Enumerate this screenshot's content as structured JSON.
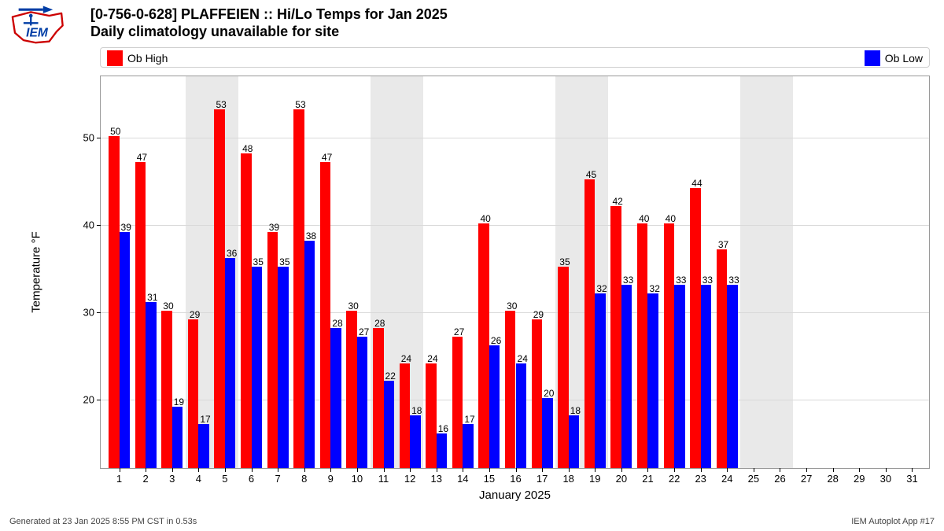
{
  "title": "[0-756-0-628] PLAFFEIEN :: Hi/Lo Temps for Jan 2025",
  "subtitle": "Daily climatology unavailable for site",
  "legend": {
    "high": {
      "label": "Ob High",
      "color": "#ff0000"
    },
    "low": {
      "label": "Ob Low",
      "color": "#0000ff"
    }
  },
  "chart": {
    "type": "bar",
    "background_color": "#ffffff",
    "weekend_band_color": "#e9e9e9",
    "grid_color": "#d9d9d9",
    "border_color": "#999999",
    "high_color": "#ff0000",
    "low_color": "#0000ff",
    "xlabel": "January 2025",
    "ylabel": "Temperature °F",
    "ylim": [
      12,
      57
    ],
    "yticks": [
      20,
      30,
      40,
      50
    ],
    "xlim": [
      0.3,
      31.7
    ],
    "days": [
      1,
      2,
      3,
      4,
      5,
      6,
      7,
      8,
      9,
      10,
      11,
      12,
      13,
      14,
      15,
      16,
      17,
      18,
      19,
      20,
      21,
      22,
      23,
      24,
      25,
      26,
      27,
      28,
      29,
      30,
      31
    ],
    "weekend_bands": [
      [
        3.5,
        5.5
      ],
      [
        10.5,
        12.5
      ],
      [
        17.5,
        19.5
      ],
      [
        24.5,
        26.5
      ]
    ],
    "high": [
      50,
      47,
      30,
      29,
      53,
      48,
      39,
      53,
      47,
      30,
      28,
      24,
      24,
      27,
      40,
      30,
      29,
      35,
      45,
      42,
      40,
      40,
      44,
      37,
      null,
      null,
      null,
      null,
      null,
      null,
      null
    ],
    "low": [
      39,
      31,
      19,
      17,
      36,
      35,
      35,
      38,
      28,
      27,
      22,
      18,
      16,
      17,
      26,
      24,
      20,
      18,
      32,
      33,
      32,
      33,
      33,
      33,
      null,
      null,
      null,
      null,
      null,
      null,
      null
    ],
    "bar_width": 0.4,
    "label_fontsize": 12,
    "tick_fontsize": 13,
    "axis_label_fontsize": 15
  },
  "footer": {
    "left": "Generated at 23 Jan 2025 8:55 PM CST in 0.53s",
    "right": "IEM Autoplot App #17"
  },
  "logo": {
    "text": "IEM",
    "outline": "#cc0000",
    "accent": "#003da5"
  }
}
